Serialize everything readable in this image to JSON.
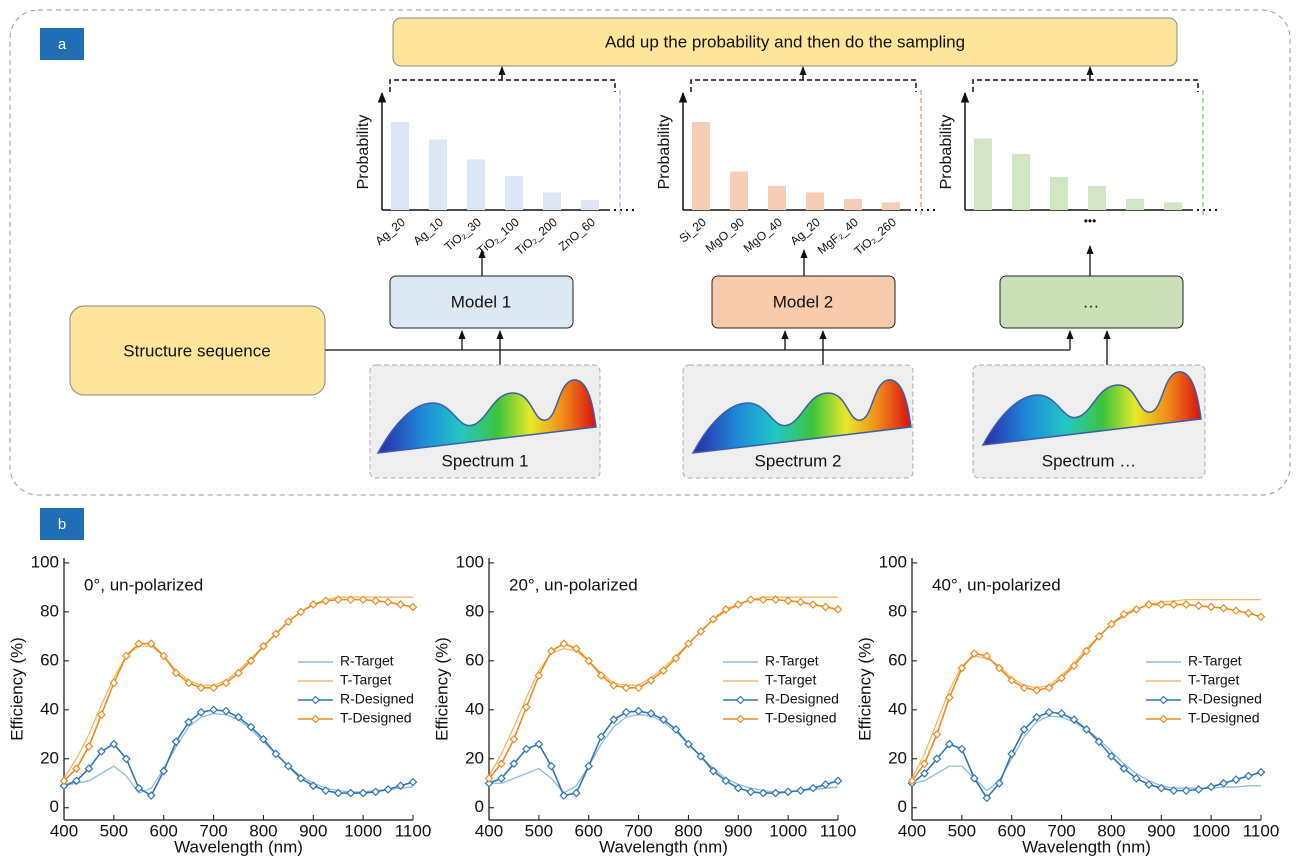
{
  "diagram": {
    "label_a": "a",
    "label_b": "b",
    "top_box": "Add up the probability and then do the sampling",
    "models": [
      "Model 1",
      "Model 2",
      "…"
    ],
    "structure": "Structure sequence",
    "spectra": [
      "Spectrum 1",
      "Spectrum 2",
      "Spectrum …"
    ],
    "ellipsis": "•••"
  },
  "chart_data": [
    {
      "type": "bar",
      "y_label": "Probability",
      "categories": [
        "Ag_20",
        "Ag_10",
        "TiO₂_30",
        "TiO₂_100",
        "TiO₂_200",
        "ZnO_60"
      ],
      "values": [
        80,
        64,
        46,
        31,
        16,
        9
      ],
      "color": "#dce7f5",
      "ylim": [
        0,
        100
      ]
    },
    {
      "type": "bar",
      "y_label": "Probability",
      "categories": [
        "Si_20",
        "MgO_90",
        "MgO_40",
        "Ag_20",
        "MgF₂_40",
        "TiO₂_260"
      ],
      "values": [
        80,
        35,
        22,
        16,
        10,
        7
      ],
      "color": "#f7ceb5",
      "ylim": [
        0,
        100
      ]
    },
    {
      "type": "bar",
      "y_label": "Probability",
      "categories": [
        null,
        null,
        null,
        null,
        null,
        null
      ],
      "values": [
        65,
        51,
        30,
        22,
        10,
        7
      ],
      "color": "#d0e6c2",
      "ylim": [
        0,
        100
      ]
    },
    {
      "type": "line",
      "annotation": "0°, un-polarized",
      "x_label": "Wavelength (nm)",
      "y_label": "Efficiency (%)",
      "legend": "right",
      "x": [
        400,
        425,
        450,
        475,
        500,
        525,
        550,
        575,
        600,
        625,
        650,
        675,
        700,
        725,
        750,
        775,
        800,
        825,
        850,
        875,
        900,
        925,
        950,
        975,
        1000,
        1025,
        1050,
        1075,
        1100
      ],
      "xlim": [
        400,
        1100
      ],
      "xticks": [
        400,
        500,
        600,
        700,
        800,
        900,
        1000,
        1100
      ],
      "ylim": [
        -5,
        102
      ],
      "yticks": [
        0,
        20,
        40,
        60,
        80,
        100
      ],
      "series": [
        {
          "name": "R-Target",
          "color": "#8fbcdc",
          "values": [
            9,
            10,
            11,
            14,
            17,
            13,
            6,
            8,
            16,
            25,
            33,
            37,
            38.5,
            38,
            36,
            32,
            27,
            22,
            17,
            13,
            10,
            8,
            7,
            6.5,
            6.5,
            7,
            7.5,
            8,
            8.5
          ]
        },
        {
          "name": "T-Target",
          "color": "#f6b76c",
          "values": [
            12,
            20,
            30,
            42,
            53,
            62,
            66,
            66,
            62,
            56,
            52,
            50,
            50,
            52,
            56,
            61,
            66,
            71,
            76,
            80,
            83,
            85,
            86,
            86,
            86,
            86,
            86,
            86,
            86
          ]
        },
        {
          "name": "R-Designed",
          "color": "#2e75b6",
          "marker": "diamond",
          "values": [
            9,
            11,
            16,
            23,
            26,
            20,
            8,
            5,
            15,
            27,
            35,
            39,
            40,
            39.5,
            37,
            33,
            28,
            22,
            17,
            12,
            9,
            7,
            6,
            6,
            6,
            6.5,
            7.5,
            9,
            10.5
          ]
        },
        {
          "name": "T-Designed",
          "color": "#ed8b1e",
          "marker": "diamond",
          "values": [
            11,
            16,
            25,
            38,
            51,
            62,
            67,
            67,
            62,
            55,
            51,
            49,
            49,
            51,
            55,
            60,
            66,
            71,
            76,
            80,
            83,
            84.5,
            85,
            85,
            85,
            84.5,
            84,
            83,
            82
          ]
        }
      ]
    },
    {
      "type": "line",
      "annotation": "20°, un-polarized",
      "x_label": "Wavelength (nm)",
      "y_label": "Efficiency (%)",
      "legend": "right",
      "x": [
        400,
        425,
        450,
        475,
        500,
        525,
        550,
        575,
        600,
        625,
        650,
        675,
        700,
        725,
        750,
        775,
        800,
        825,
        850,
        875,
        900,
        925,
        950,
        975,
        1000,
        1025,
        1050,
        1075,
        1100
      ],
      "xlim": [
        400,
        1100
      ],
      "xticks": [
        400,
        500,
        600,
        700,
        800,
        900,
        1000,
        1100
      ],
      "ylim": [
        -5,
        102
      ],
      "yticks": [
        0,
        20,
        40,
        60,
        80,
        100
      ],
      "series": [
        {
          "name": "R-Target",
          "color": "#8fbcdc",
          "values": [
            10,
            10,
            12,
            14,
            16,
            12,
            6,
            9,
            17,
            26,
            33,
            37,
            38,
            37.5,
            35,
            31,
            26,
            21,
            16,
            12,
            9.5,
            8,
            7,
            6.5,
            6.5,
            7,
            7.5,
            8,
            8.5
          ]
        },
        {
          "name": "T-Target",
          "color": "#f6b76c",
          "values": [
            13,
            22,
            33,
            45,
            56,
            63,
            65,
            64,
            60,
            55,
            51,
            50,
            50,
            53,
            57,
            62,
            67,
            72,
            77,
            80,
            83,
            85,
            86,
            86,
            86,
            86,
            86,
            86,
            86
          ]
        },
        {
          "name": "R-Designed",
          "color": "#2e75b6",
          "marker": "diamond",
          "values": [
            10,
            12,
            18,
            24,
            26,
            17,
            5,
            6,
            17,
            29,
            36,
            39,
            39.5,
            38.5,
            36,
            32,
            26,
            21,
            15,
            11,
            8,
            6.5,
            6,
            6,
            6.5,
            7,
            8,
            9.5,
            11
          ]
        },
        {
          "name": "T-Designed",
          "color": "#ed8b1e",
          "marker": "diamond",
          "values": [
            12,
            18,
            28,
            41,
            54,
            64,
            67,
            65,
            60,
            54,
            50,
            49,
            49,
            52,
            56,
            61,
            67,
            72,
            77,
            81,
            83,
            85,
            85,
            85,
            84.5,
            84,
            83,
            82,
            81
          ]
        }
      ]
    },
    {
      "type": "line",
      "annotation": "40°, un-polarized",
      "x_label": "Wavelength (nm)",
      "y_label": "Efficiency (%)",
      "legend": "right",
      "x": [
        400,
        425,
        450,
        475,
        500,
        525,
        550,
        575,
        600,
        625,
        650,
        675,
        700,
        725,
        750,
        775,
        800,
        825,
        850,
        875,
        900,
        925,
        950,
        975,
        1000,
        1025,
        1050,
        1075,
        1100
      ],
      "xlim": [
        400,
        1100
      ],
      "xticks": [
        400,
        500,
        600,
        700,
        800,
        900,
        1000,
        1100
      ],
      "ylim": [
        -5,
        102
      ],
      "yticks": [
        0,
        20,
        40,
        60,
        80,
        100
      ],
      "series": [
        {
          "name": "R-Target",
          "color": "#8fbcdc",
          "values": [
            10,
            11,
            14,
            17,
            17,
            12,
            7,
            11,
            20,
            29,
            35,
            37.5,
            37,
            35,
            32,
            28,
            23,
            18,
            14,
            11,
            9,
            8,
            8,
            8,
            8,
            8.5,
            8.5,
            9,
            9
          ]
        },
        {
          "name": "T-Target",
          "color": "#f6b76c",
          "values": [
            12,
            22,
            35,
            48,
            58,
            62,
            61,
            58,
            53,
            50,
            49,
            50,
            54,
            59,
            65,
            70,
            75,
            78,
            81,
            83,
            84,
            84.5,
            85,
            85,
            85,
            85,
            85,
            85,
            85
          ]
        },
        {
          "name": "R-Designed",
          "color": "#2e75b6",
          "marker": "diamond",
          "values": [
            10,
            14,
            20,
            26,
            24,
            12,
            4,
            10,
            22,
            32,
            37,
            39,
            38.5,
            36,
            32,
            27,
            21,
            16,
            12,
            9.5,
            8,
            7,
            7,
            7.5,
            8.5,
            10,
            11.5,
            13,
            14.5
          ]
        },
        {
          "name": "T-Designed",
          "color": "#ed8b1e",
          "marker": "diamond",
          "values": [
            11,
            18,
            30,
            45,
            57,
            63,
            62,
            57,
            52,
            49,
            48,
            49,
            53,
            58,
            64,
            70,
            75,
            79,
            81,
            83,
            83,
            83,
            83,
            82.5,
            82,
            81.5,
            80.5,
            79.5,
            78
          ]
        }
      ]
    }
  ]
}
